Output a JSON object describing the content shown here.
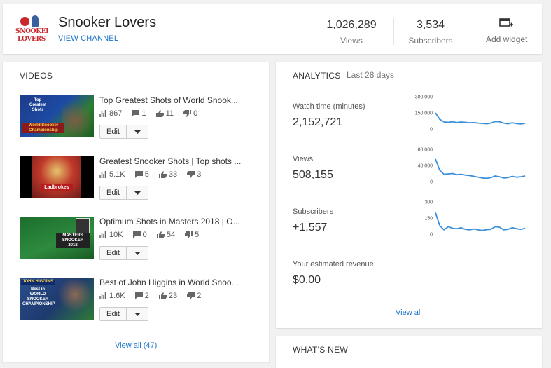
{
  "header": {
    "logo_text_line1": "SNOOKER",
    "logo_text_line2": "LOVERS",
    "channel_name": "Snooker Lovers",
    "view_channel": "VIEW CHANNEL",
    "views": {
      "value": "1,026,289",
      "label": "Views"
    },
    "subscribers": {
      "value": "3,534",
      "label": "Subscribers"
    },
    "add_widget": "Add widget"
  },
  "videos": {
    "title": "VIDEOS",
    "items": [
      {
        "title": "Top Greatest Shots of World Snook...",
        "views": "867",
        "comments": "1",
        "likes": "11",
        "dislikes": "0",
        "edit": "Edit",
        "thumb_text": "Top\nGreatest\nShots\nWorld Snooker\nChampionship"
      },
      {
        "title": "Greatest Snooker Shots | Top shots ...",
        "views": "5.1K",
        "comments": "5",
        "likes": "33",
        "dislikes": "3",
        "edit": "Edit",
        "thumb_text": "Ladbrokes"
      },
      {
        "title": "Optimum Shots in Masters 2018 | O...",
        "views": "10K",
        "comments": "0",
        "likes": "54",
        "dislikes": "5",
        "edit": "Edit",
        "thumb_text": "MASTERS\nSNOOKER\n2018"
      },
      {
        "title": "Best of John Higgins in World Snoo...",
        "views": "1.6K",
        "comments": "2",
        "likes": "23",
        "dislikes": "2",
        "edit": "Edit",
        "thumb_text": "JOHN HIGGINS\nBest in\nWORLD\nSNOOKER\nCHAMPIONSHIP"
      }
    ],
    "view_all": "View all (47)"
  },
  "analytics": {
    "title": "ANALYTICS",
    "range": "Last 28 days",
    "accent": "#3a8fd8",
    "metrics": [
      {
        "label": "Watch time (minutes)",
        "value": "2,152,721",
        "ticks": [
          "300,000",
          "150,000",
          "0"
        ],
        "ymax": 300000,
        "series": [
          150000,
          90000,
          65000,
          62000,
          68000,
          60000,
          65000,
          62000,
          58000,
          60000,
          55000,
          52000,
          48000,
          55000,
          70000,
          68000,
          55000,
          48000,
          58000,
          50000,
          46000,
          52000
        ]
      },
      {
        "label": "Views",
        "value": "508,155",
        "ticks": [
          "80,000",
          "40,000",
          "0"
        ],
        "ymax": 80000,
        "series": [
          56000,
          28000,
          18000,
          19000,
          20000,
          17000,
          18000,
          16000,
          15000,
          13000,
          11000,
          9000,
          8000,
          10000,
          14000,
          12000,
          9000,
          10000,
          13000,
          11000,
          12000,
          14000
        ]
      },
      {
        "label": "Subscribers",
        "value": "+1,557",
        "ticks": [
          "300",
          "150",
          "0"
        ],
        "ymax": 300,
        "series": [
          200,
          80,
          40,
          70,
          55,
          50,
          60,
          45,
          40,
          48,
          40,
          35,
          42,
          45,
          70,
          65,
          40,
          45,
          60,
          50,
          45,
          55
        ]
      },
      {
        "label": "Your estimated revenue",
        "value": "$0.00"
      }
    ],
    "view_all": "View all"
  },
  "whats_new": {
    "title": "WHAT'S NEW"
  }
}
